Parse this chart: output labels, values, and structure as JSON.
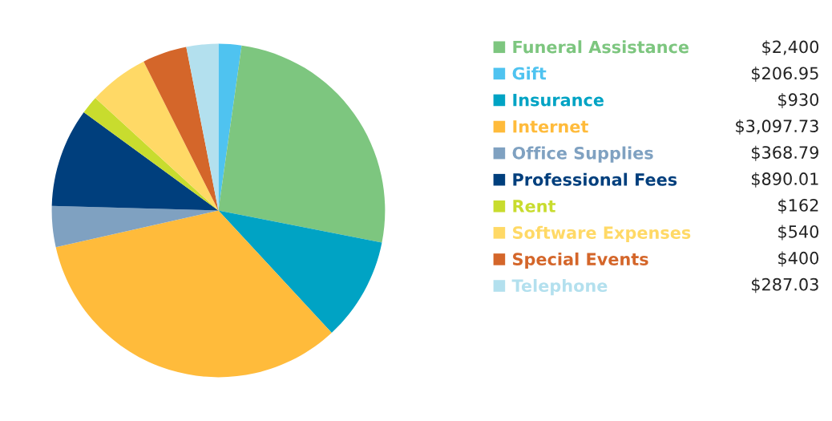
{
  "chart_data": {
    "type": "pie",
    "categories": [
      "Gift",
      "Funeral Assistance",
      "Insurance",
      "Internet",
      "Office Supplies",
      "Professional Fees",
      "Rent",
      "Software Expenses",
      "Special Events",
      "Telephone"
    ],
    "values": [
      206.95,
      2400,
      930,
      3097.73,
      368.79,
      890.01,
      162,
      540,
      400,
      287.03
    ],
    "value_labels": [
      "$206.95",
      "$2,400",
      "$930",
      "$3,097.73",
      "$368.79",
      "$890.01",
      "$162",
      "$540",
      "$400",
      "$287.03"
    ],
    "colors": [
      "#4fc3f0",
      "#7dc67f",
      "#00a3c4",
      "#ffbb3b",
      "#7fa1c1",
      "#003f7d",
      "#c8dc2e",
      "#ffd966",
      "#d4662a",
      "#b3e0ee"
    ],
    "legend": "right"
  }
}
